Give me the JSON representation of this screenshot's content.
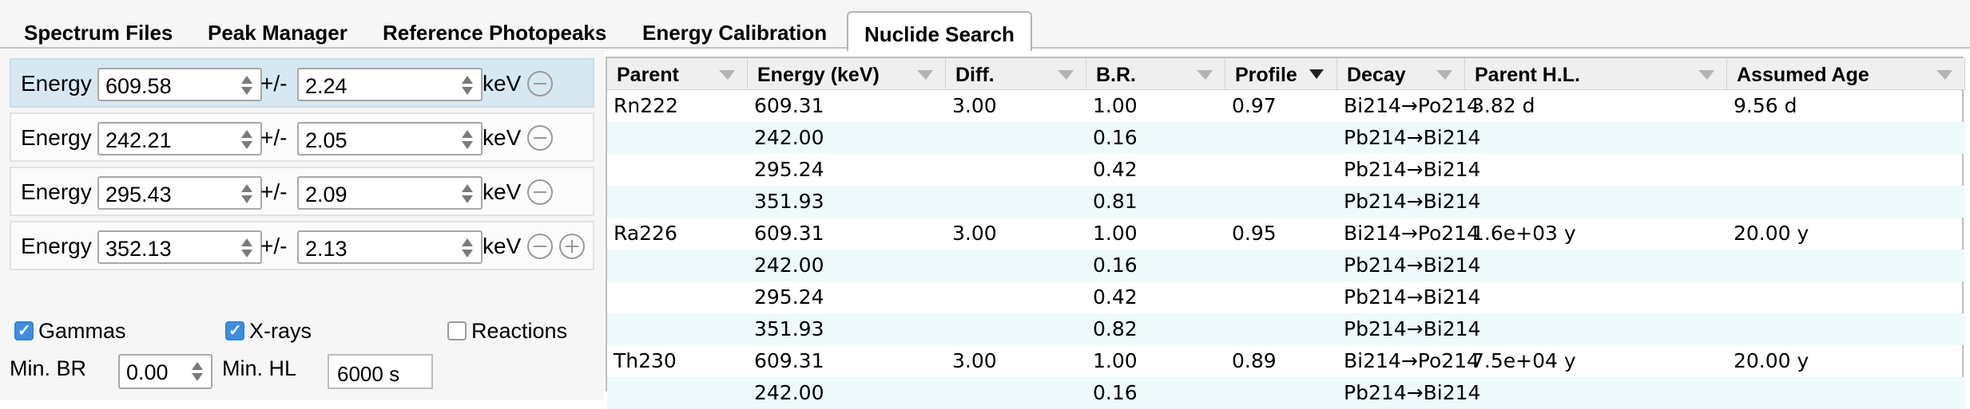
{
  "tabs": [
    {
      "label": "Spectrum Files"
    },
    {
      "label": "Peak Manager"
    },
    {
      "label": "Reference Photopeaks"
    },
    {
      "label": "Energy Calibration"
    },
    {
      "label": "Nuclide Search"
    }
  ],
  "search": {
    "energy_label": "Energy",
    "pm_label": "+/-",
    "unit": "keV",
    "rows": [
      {
        "energy": "609.58",
        "window": "2.24"
      },
      {
        "energy": "242.21",
        "window": "2.05"
      },
      {
        "energy": "295.43",
        "window": "2.09"
      },
      {
        "energy": "352.13",
        "window": "2.13"
      }
    ]
  },
  "filters": {
    "gammas_label": "Gammas",
    "gammas_checked": true,
    "xrays_label": "X-rays",
    "xrays_checked": true,
    "reactions_label": "Reactions",
    "reactions_checked": false,
    "min_br_label": "Min. BR",
    "min_br_value": "0.00",
    "min_hl_label": "Min. HL",
    "min_hl_value": "6000 s"
  },
  "results": {
    "columns": [
      "Parent",
      "Energy (keV)",
      "Diff.",
      "B.R.",
      "Profile",
      "Decay",
      "Parent H.L.",
      "Assumed Age"
    ],
    "sorted_column": "Profile",
    "rows": [
      [
        "Rn222",
        "609.31",
        "3.00",
        "1.00",
        "0.97",
        "Bi214→Po214",
        "3.82 d",
        "9.56 d"
      ],
      [
        "",
        "242.00",
        "",
        "0.16",
        "",
        "Pb214→Bi214",
        "",
        ""
      ],
      [
        "",
        "295.24",
        "",
        "0.42",
        "",
        "Pb214→Bi214",
        "",
        ""
      ],
      [
        "",
        "351.93",
        "",
        "0.81",
        "",
        "Pb214→Bi214",
        "",
        ""
      ],
      [
        "Ra226",
        "609.31",
        "3.00",
        "1.00",
        "0.95",
        "Bi214→Po214",
        "1.6e+03 y",
        "20.00 y"
      ],
      [
        "",
        "242.00",
        "",
        "0.16",
        "",
        "Pb214→Bi214",
        "",
        ""
      ],
      [
        "",
        "295.24",
        "",
        "0.42",
        "",
        "Pb214→Bi214",
        "",
        ""
      ],
      [
        "",
        "351.93",
        "",
        "0.82",
        "",
        "Pb214→Bi214",
        "",
        ""
      ],
      [
        "Th230",
        "609.31",
        "3.00",
        "1.00",
        "0.89",
        "Bi214→Po214",
        "7.5e+04 y",
        "20.00 y"
      ],
      [
        "",
        "242.00",
        "",
        "0.16",
        "",
        "Pb214→Bi214",
        "",
        ""
      ]
    ]
  },
  "colors": {
    "selected_row": "#d6e9f3",
    "alt_row": "#edf9fb",
    "checkbox_on": "#3d8ee2"
  }
}
